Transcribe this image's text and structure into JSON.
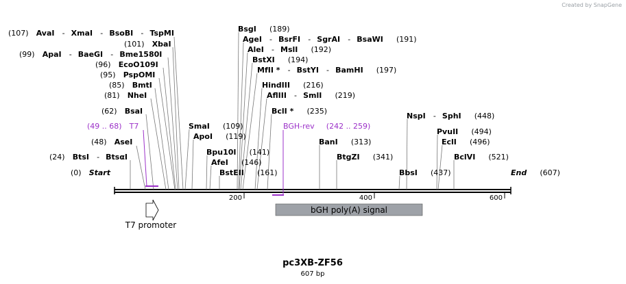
{
  "credit": "Created by SnapGene",
  "map": {
    "name": "pc3XB-ZF56",
    "length_label": "607 bp",
    "length_bp": 607,
    "ticks": [
      200,
      400,
      600
    ],
    "start_label": "Start",
    "end_label": "End",
    "start_pos": "(0)",
    "end_pos": "(607)"
  },
  "sites": [
    {
      "names": [
        "AvaI",
        "XmaI",
        "BsoBI",
        "TspMI"
      ],
      "pos_label": "(107)",
      "bp": 107,
      "side": "left"
    },
    {
      "names": [
        "XbaI"
      ],
      "pos_label": "(101)",
      "bp": 101,
      "side": "left"
    },
    {
      "names": [
        "ApaI",
        "BaeGI",
        "Bme1580I"
      ],
      "pos_label": "(99)",
      "bp": 99,
      "side": "left"
    },
    {
      "names": [
        "EcoO109I"
      ],
      "pos_label": "(96)",
      "bp": 96,
      "side": "left"
    },
    {
      "names": [
        "PspOMI"
      ],
      "pos_label": "(95)",
      "bp": 95,
      "side": "left"
    },
    {
      "names": [
        "BmtI"
      ],
      "pos_label": "(85)",
      "bp": 85,
      "side": "left"
    },
    {
      "names": [
        "NheI"
      ],
      "pos_label": "(81)",
      "bp": 81,
      "side": "left"
    },
    {
      "names": [
        "BsaI"
      ],
      "pos_label": "(62)",
      "bp": 62,
      "side": "left"
    },
    {
      "names": [
        "AseI"
      ],
      "pos_label": "(48)",
      "bp": 48,
      "side": "left"
    },
    {
      "names": [
        "BtsI",
        "BtsαI"
      ],
      "pos_label": "(24)",
      "bp": 24,
      "side": "left"
    },
    {
      "names": [
        "SmaI"
      ],
      "pos_label": "(109)",
      "bp": 109,
      "side": "right"
    },
    {
      "names": [
        "ApoI"
      ],
      "pos_label": "(119)",
      "bp": 119,
      "side": "right"
    },
    {
      "names": [
        "Bpu10I"
      ],
      "pos_label": "(141)",
      "bp": 141,
      "side": "right"
    },
    {
      "names": [
        "AfeI"
      ],
      "pos_label": "(146)",
      "bp": 146,
      "side": "right"
    },
    {
      "names": [
        "BstEII"
      ],
      "pos_label": "(161)",
      "bp": 161,
      "side": "right"
    },
    {
      "names": [
        "BsgI"
      ],
      "pos_label": "(189)",
      "bp": 189,
      "side": "right"
    },
    {
      "names": [
        "AgeI",
        "BsrFI",
        "SgrAI",
        "BsaWI"
      ],
      "pos_label": "(191)",
      "bp": 191,
      "side": "right"
    },
    {
      "names": [
        "AleI",
        "MslI"
      ],
      "pos_label": "(192)",
      "bp": 192,
      "side": "right"
    },
    {
      "names": [
        "BstXI"
      ],
      "pos_label": "(194)",
      "bp": 194,
      "side": "right"
    },
    {
      "names": [
        "MfII *",
        "BstYI",
        "BamHI"
      ],
      "pos_label": "(197)",
      "bp": 197,
      "side": "right"
    },
    {
      "names": [
        "HindIII"
      ],
      "pos_label": "(216)",
      "bp": 216,
      "side": "right"
    },
    {
      "names": [
        "AflIII",
        "SmlI"
      ],
      "pos_label": "(219)",
      "bp": 219,
      "side": "right"
    },
    {
      "names": [
        "BclI *"
      ],
      "pos_label": "(235)",
      "bp": 235,
      "side": "right"
    },
    {
      "names": [
        "BanI"
      ],
      "pos_label": "(313)",
      "bp": 313,
      "side": "right"
    },
    {
      "names": [
        "BtgZI"
      ],
      "pos_label": "(341)",
      "bp": 341,
      "side": "right"
    },
    {
      "names": [
        "BbsI"
      ],
      "pos_label": "(437)",
      "bp": 437,
      "side": "right"
    },
    {
      "names": [
        "NspI",
        "SphI"
      ],
      "pos_label": "(448)",
      "bp": 448,
      "side": "right"
    },
    {
      "names": [
        "PvuII"
      ],
      "pos_label": "(494)",
      "bp": 494,
      "side": "right"
    },
    {
      "names": [
        "EclI"
      ],
      "pos_label": "(496)",
      "bp": 496,
      "side": "right"
    },
    {
      "names": [
        "BclVI"
      ],
      "pos_label": "(521)",
      "bp": 521,
      "side": "right"
    }
  ],
  "primers": [
    {
      "name": "T7",
      "range_label": "(49 .. 68)",
      "start": 49,
      "end": 68,
      "strand": "forward"
    },
    {
      "name": "BGH-rev",
      "range_label": "(242 .. 259)",
      "start": 242,
      "end": 259,
      "strand": "reverse"
    }
  ],
  "features": [
    {
      "name": "T7 promoter",
      "type": "promoter",
      "start": 49,
      "end": 67,
      "color": "#ffffff"
    },
    {
      "name": "bGH poly(A) signal",
      "type": "terminator",
      "start": 249,
      "end": 473,
      "color": "#9ea2a8"
    }
  ],
  "colors": {
    "primer": "#9b30c8",
    "feature_box": "#9ea2a8",
    "backbone": "#000000"
  }
}
